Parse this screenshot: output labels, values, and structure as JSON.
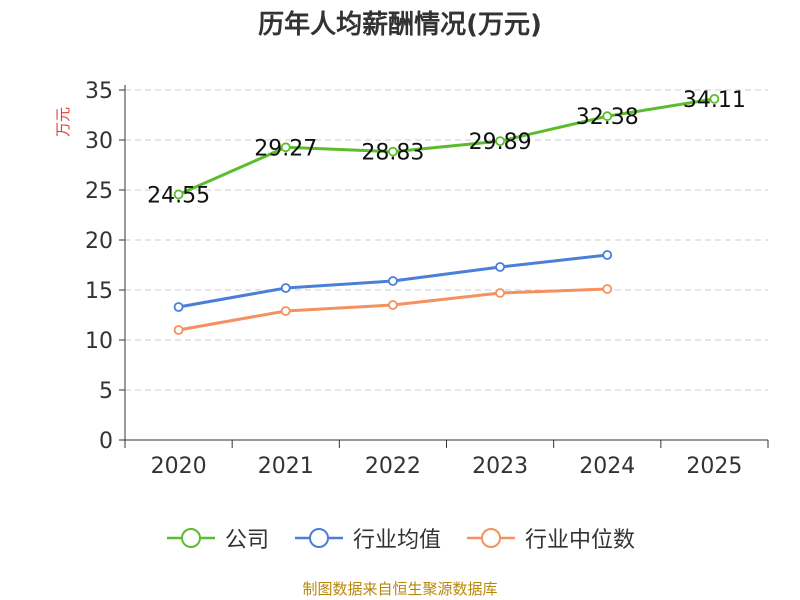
{
  "chart_data": {
    "type": "line",
    "title": "历年人均薪酬情况(万元)",
    "ylabel": "万元",
    "xlabel": "",
    "categories": [
      "2020",
      "2021",
      "2022",
      "2023",
      "2024",
      "2025"
    ],
    "ylim": [
      0,
      35
    ],
    "yticks": [
      0,
      5,
      10,
      15,
      20,
      25,
      30,
      35
    ],
    "grid": true,
    "legend_position": "bottom",
    "series": [
      {
        "name": "公司",
        "color": "#5cbd2c",
        "show_labels": true,
        "values": [
          24.55,
          29.27,
          28.83,
          29.89,
          32.38,
          34.11
        ],
        "labels": [
          "24.55",
          "29.27",
          "28.83",
          "29.89",
          "32.38",
          "34.11"
        ]
      },
      {
        "name": "行业均值",
        "color": "#4a7fd9",
        "show_labels": false,
        "values": [
          13.3,
          15.2,
          15.9,
          17.3,
          18.5,
          null
        ]
      },
      {
        "name": "行业中位数",
        "color": "#f4915e",
        "show_labels": false,
        "values": [
          11.0,
          12.9,
          13.5,
          14.7,
          15.1,
          null
        ]
      }
    ]
  },
  "source_note": "制图数据来自恒生聚源数据库",
  "colors": {
    "axis": "#333333",
    "grid": "#cccccc",
    "ylabel": "#e03c3c",
    "source": "#b8860b"
  }
}
